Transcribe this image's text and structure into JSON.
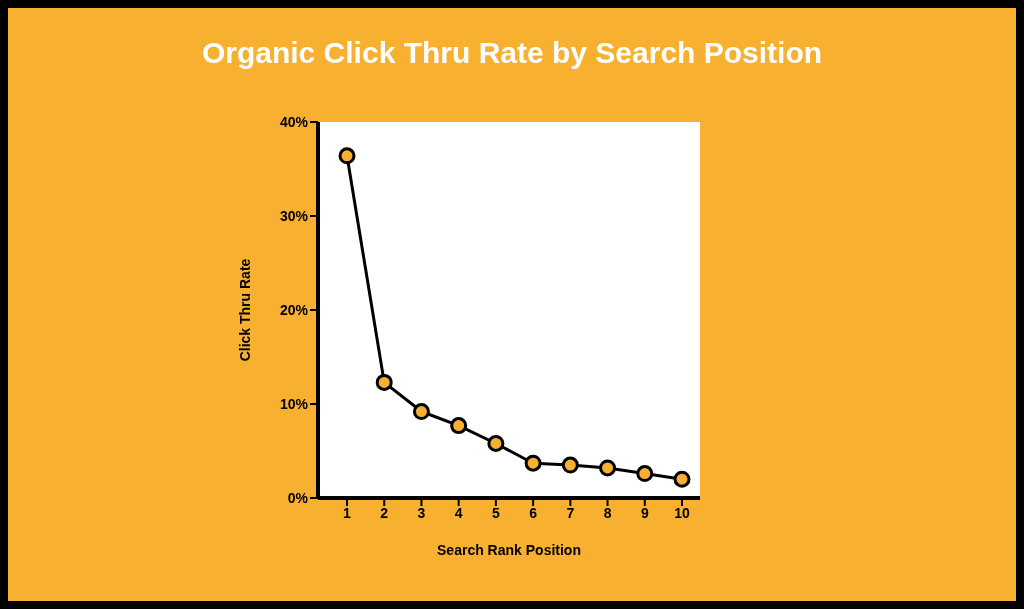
{
  "chart_data": {
    "type": "line",
    "title": "Organic Click Thru Rate by Search Position",
    "xlabel": "Search Rank Position",
    "ylabel": "Click Thru Rate",
    "categories": [
      "1",
      "2",
      "3",
      "4",
      "5",
      "6",
      "7",
      "8",
      "9",
      "10"
    ],
    "series": [
      {
        "color": "#000000",
        "values": [
          36.4,
          12.3,
          9.2,
          7.7,
          5.8,
          3.7,
          3.5,
          3.2,
          2.6,
          2.0
        ]
      }
    ],
    "ylim": [
      0,
      40
    ],
    "yticks": [
      {
        "value": 0,
        "label": "0%"
      },
      {
        "value": 10,
        "label": "10%"
      },
      {
        "value": 20,
        "label": "20%"
      },
      {
        "value": 30,
        "label": "30%"
      },
      {
        "value": 40,
        "label": "40%"
      }
    ],
    "grid": false,
    "marker": "circle",
    "line_style": "solid"
  }
}
